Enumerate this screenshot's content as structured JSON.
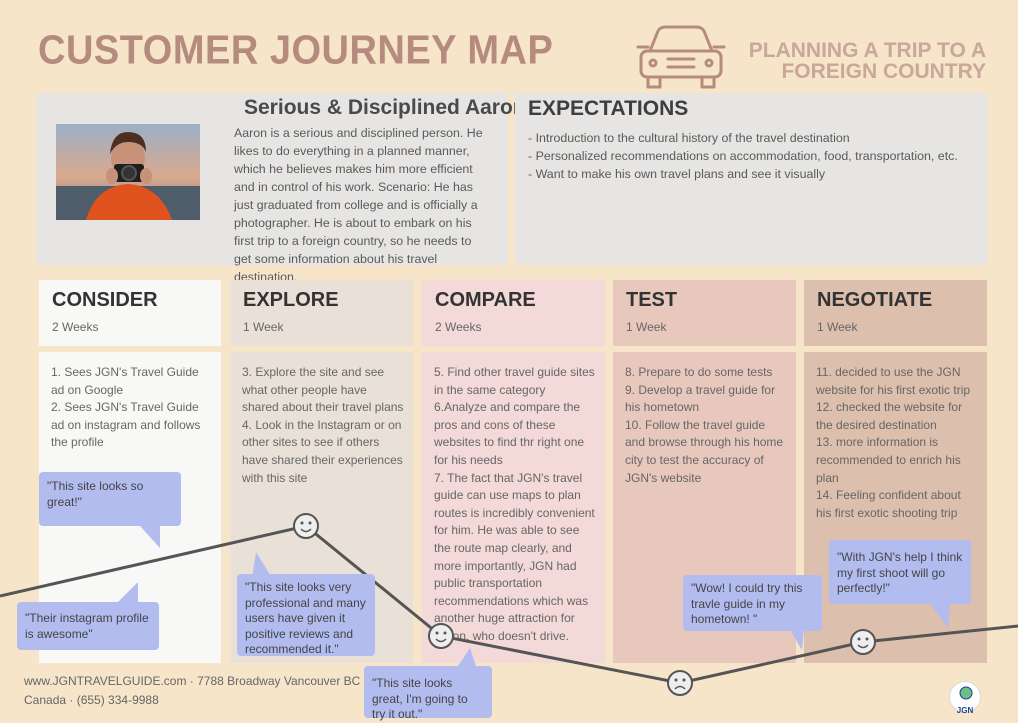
{
  "header": {
    "title": "CUSTOMER JOURNEY MAP",
    "subtitle_line1": "PLANNING A TRIP TO A",
    "subtitle_line2": "FOREIGN COUNTRY"
  },
  "persona": {
    "name": "Serious & Disciplined Aaron",
    "description": "Aaron is a serious and disciplined person. He likes to do everything in a planned manner, which he believes makes him more efficient and in control of his work. Scenario: He has just graduated from college and is officially a photographer. He is about to embark on his first trip to a foreign country, so he needs to get some information about his travel destination."
  },
  "expectations": {
    "title": "EXPECTATIONS",
    "items": [
      "- Introduction to the cultural history of the travel destination",
      "- Personalized recommendations on accommodation, food, transportation, etc.",
      "- Want to  make his own travel plans and see it visually"
    ]
  },
  "stages": [
    {
      "name": "CONSIDER",
      "duration": "2 Weeks",
      "lines": [
        "1. Sees JGN's Travel Guide ad on Google",
        "2. Sees JGN's Travel Guide ad on instagram and follows the profile"
      ]
    },
    {
      "name": "EXPLORE",
      "duration": "1 Week",
      "lines": [
        "3. Explore the site and see what other people have shared about their travel plans",
        "4. Look in the Instagram or on other sites to see if others have shared their experiences with this site"
      ]
    },
    {
      "name": "COMPARE",
      "duration": "2 Weeks",
      "lines": [
        "5. Find other travel guide sites in the same category",
        "6.Analyze and compare the pros and cons of these websites to find thr right one for his needs",
        "7. The fact that JGN's travel guide can use maps to plan routes is incredibly convenient for him. He was able to see the route map clearly, and more importantly, JGN had public transportation recommendations which was another huge attraction for Aaron, who doesn't drive."
      ]
    },
    {
      "name": "TEST",
      "duration": "1 Week",
      "lines": [
        "8. Prepare to do some tests",
        "9. Develop a travel guide for his hometown",
        "10. Follow the travel guide and browse through his home city to test the accuracy of JGN's website"
      ]
    },
    {
      "name": "NEGOTIATE",
      "duration": "1 Week",
      "lines": [
        "11. decided to use the JGN website for his first exotic trip",
        "12. checked the website for the desired destination",
        "13. more information is recommended to enrich his plan",
        "14. Feeling confident about his first exotic shooting trip"
      ]
    }
  ],
  "quotes": {
    "q1": "\"This site looks  so great!\"",
    "q2": "\"Their instagram profile is awesome\"",
    "q3": "\"This site looks very professional and many users have given it positive reviews and recommended it.\"",
    "q4": "\"This site looks great, I'm going to try it out.\"",
    "q5": "\"Wow! I could try this travle guide in my hometown! \"",
    "q6": "\"With JGN's help I think my first shoot will go perfectly!\""
  },
  "footer": {
    "text": "www.JGNTRAVELGUIDE.com · 7788 Broadway Vancouver BC Canada · (655) 334-9988"
  },
  "logo": {
    "text": "JGN"
  },
  "colors": {
    "background": "#f6e5c8",
    "title": "#b58b80",
    "bubble": "#b3bcef",
    "line": "#555555"
  }
}
